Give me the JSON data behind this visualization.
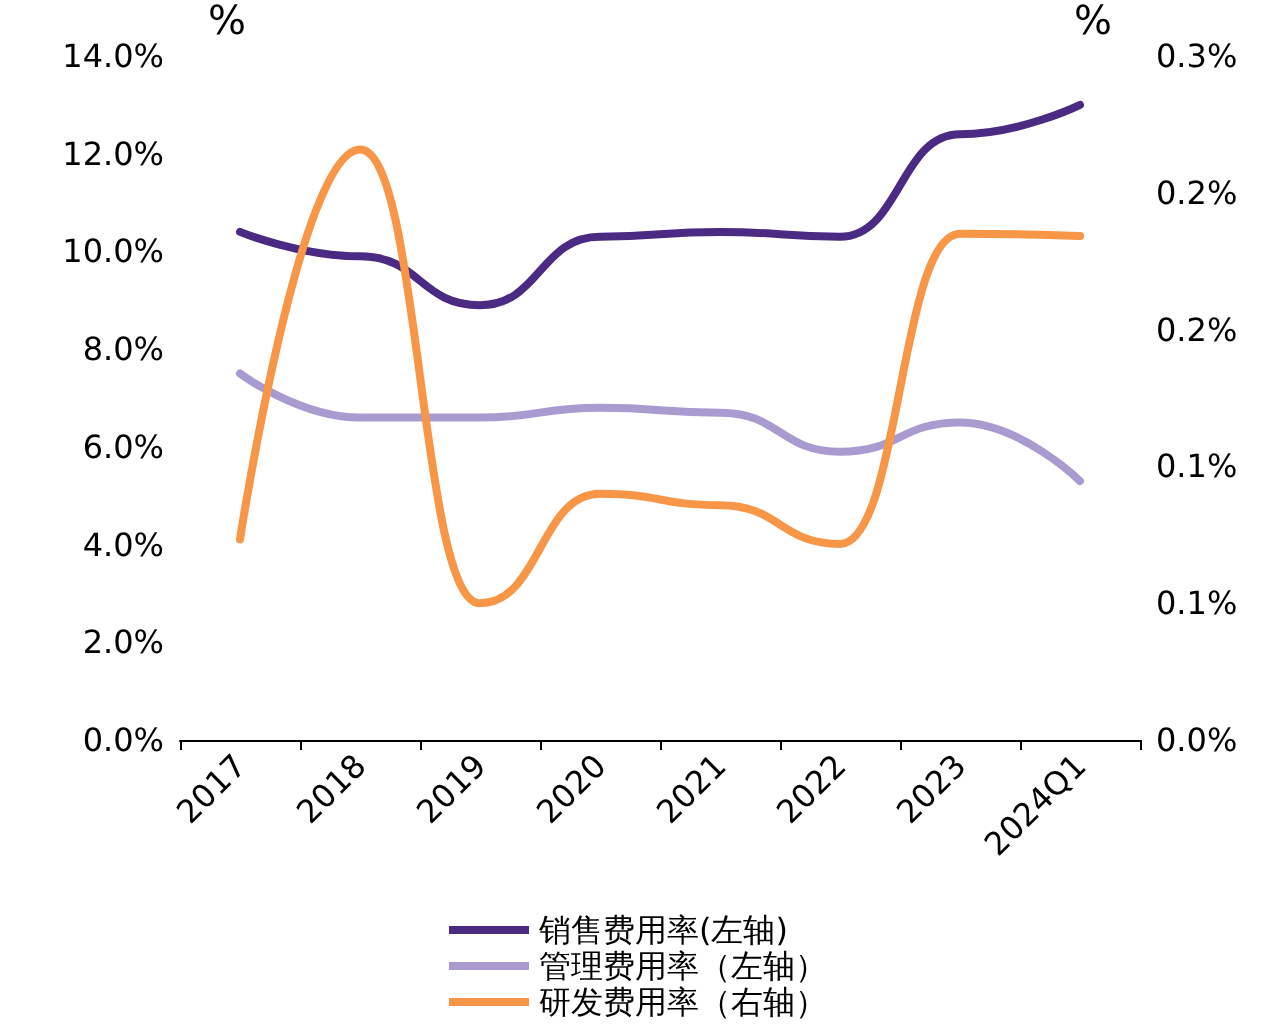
{
  "chart_data": {
    "type": "line",
    "ylabel": "%",
    "y2label": "%",
    "categories": [
      "2017",
      "2018",
      "2019",
      "2020",
      "2021",
      "2022",
      "2023",
      "2024Q1"
    ],
    "series": [
      {
        "name": "销售费用率(左轴)",
        "color": "#4b2a84",
        "values": [
          10.4,
          9.9,
          8.9,
          10.3,
          10.4,
          10.3,
          12.4,
          13.0
        ]
      },
      {
        "name": "管理费用率（左轴）",
        "color": "#a99bd0",
        "values": [
          7.5,
          6.6,
          6.6,
          6.8,
          6.7,
          5.9,
          6.5,
          5.3
        ]
      },
      {
        "name": "研发费用率（右轴）",
        "color": "#f79646",
        "axis": "y2",
        "values": [
          0.088,
          0.259,
          0.06,
          0.108,
          0.103,
          0.086,
          0.222,
          0.221
        ]
      }
    ],
    "ylim": [
      0,
      14
    ],
    "yticks": [
      {
        "value": 0,
        "label": "0.0%"
      },
      {
        "value": 2,
        "label": "2.0%"
      },
      {
        "value": 4,
        "label": "4.0%"
      },
      {
        "value": 6,
        "label": "6.0%"
      },
      {
        "value": 8,
        "label": "8.0%"
      },
      {
        "value": 10,
        "label": "10.0%"
      },
      {
        "value": 12,
        "label": "12.0%"
      },
      {
        "value": 14,
        "label": "14.0%"
      }
    ],
    "y2lim": [
      0,
      0.3
    ],
    "y2ticks": [
      {
        "value": 0,
        "label": "0.0%"
      },
      {
        "value": 0.06,
        "label": "0.1%"
      },
      {
        "value": 0.12,
        "label": "0.1%"
      },
      {
        "value": 0.18,
        "label": "0.2%"
      },
      {
        "value": 0.24,
        "label": "0.2%"
      },
      {
        "value": 0.3,
        "label": "0.3%"
      }
    ],
    "grid": false,
    "legend": "bottom",
    "marker": "none",
    "line_style": "solid"
  }
}
